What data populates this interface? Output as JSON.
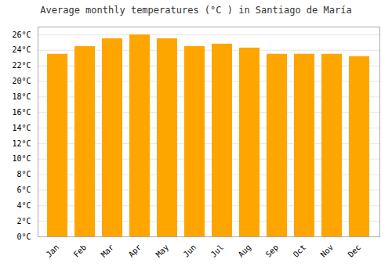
{
  "chart_data": {
    "type": "bar",
    "title": "Average monthly temperatures (°C ) in Santiago de María",
    "categories": [
      "Jan",
      "Feb",
      "Mar",
      "Apr",
      "May",
      "Jun",
      "Jul",
      "Aug",
      "Sep",
      "Oct",
      "Nov",
      "Dec"
    ],
    "values": [
      23.5,
      24.5,
      25.5,
      26.0,
      25.5,
      24.5,
      24.8,
      24.3,
      23.5,
      23.5,
      23.5,
      23.2
    ],
    "color": "#FFA500",
    "ylim": [
      0,
      27
    ],
    "yticks": [
      {
        "value": 0,
        "label": "0°C"
      },
      {
        "value": 2,
        "label": "2°C"
      },
      {
        "value": 4,
        "label": "4°C"
      },
      {
        "value": 6,
        "label": "6°C"
      },
      {
        "value": 8,
        "label": "8°C"
      },
      {
        "value": 10,
        "label": "10°C"
      },
      {
        "value": 12,
        "label": "12°C"
      },
      {
        "value": 14,
        "label": "14°C"
      },
      {
        "value": 16,
        "label": "16°C"
      },
      {
        "value": 18,
        "label": "18°C"
      },
      {
        "value": 20,
        "label": "20°C"
      },
      {
        "value": 22,
        "label": "22°C"
      },
      {
        "value": 24,
        "label": "24°C"
      },
      {
        "value": 26,
        "label": "26°C"
      }
    ],
    "grid": true
  }
}
